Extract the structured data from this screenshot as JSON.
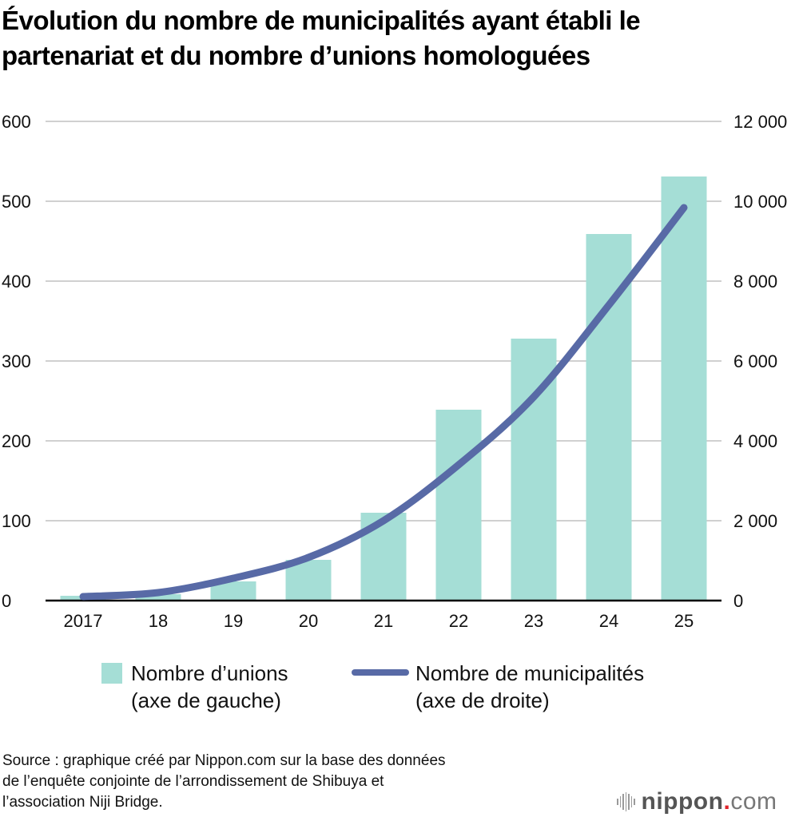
{
  "title": {
    "line1": "Évolution du nombre de municipalités ayant établi le",
    "line2": "partenariat et du nombre d’unions homologuées"
  },
  "colors": {
    "bar": "#a5ded6",
    "line": "#586aa6",
    "grid": "#d0d0d0",
    "axis": "#000000",
    "text": "#111111",
    "logo_dot": "#e0242b"
  },
  "chart_data": {
    "type": "bar+line",
    "title": "Évolution du nombre de municipalités ayant établi le partenariat et du nombre d’unions homologuées",
    "categories": [
      "2017",
      "18",
      "19",
      "20",
      "21",
      "22",
      "23",
      "24",
      "25"
    ],
    "series": [
      {
        "name": "Nombre d’unions (axe de gauche)",
        "type": "bar",
        "axis": "left",
        "values": [
          6,
          8,
          24,
          51,
          110,
          239,
          328,
          459,
          531
        ]
      },
      {
        "name": "Nombre de municipalités (axe de droite)",
        "type": "line",
        "axis": "right",
        "values": [
          100,
          200,
          560,
          1080,
          2000,
          3400,
          5100,
          7400,
          9840
        ]
      }
    ],
    "left_axis": {
      "min": 0,
      "max": 600,
      "ticks": [
        "0",
        "100",
        "200",
        "300",
        "400",
        "500",
        "600"
      ]
    },
    "right_axis": {
      "min": 0,
      "max": 12000,
      "ticks": [
        "0",
        "2 000",
        "4 000",
        "6 000",
        "8 000",
        "10 000",
        "12 000"
      ]
    },
    "xlabel": "",
    "ylabel_left": "",
    "ylabel_right": "",
    "grid": true,
    "legend_position": "bottom"
  },
  "legend": {
    "bar_line1": "Nombre d’unions",
    "bar_line2": "(axe de gauche)",
    "line_line1": "Nombre de municipalités",
    "line_line2": "(axe de droite)"
  },
  "source": {
    "line1": "Source : graphique créé par Nippon.com sur la base des données",
    "line2": "de l’enquête conjointe de l’arrondissement de Shibuya et",
    "line3": "l’association Niji Bridge."
  },
  "logo": {
    "name": "nippon",
    "dot": ".",
    "suffix": "com"
  }
}
